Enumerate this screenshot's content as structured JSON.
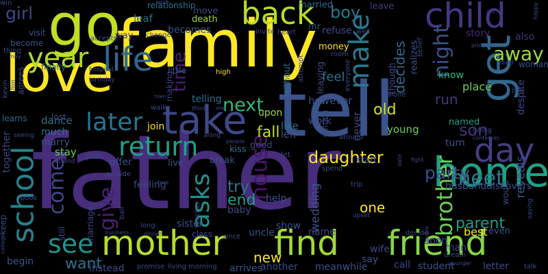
{
  "words": [
    {
      "text": "father",
      "color": "#472d7b"
    },
    {
      "text": "family",
      "color": "#fde725"
    },
    {
      "text": "tell",
      "color": "#3b528b"
    },
    {
      "text": "love",
      "color": "#fde725"
    },
    {
      "text": "go",
      "color": "#c2df23"
    },
    {
      "text": "mother",
      "color": "#b5de2b"
    },
    {
      "text": "find",
      "color": "#a0da39"
    },
    {
      "text": "friend",
      "color": "#86d549"
    },
    {
      "text": "home",
      "color": "#1fa187"
    },
    {
      "text": "take",
      "color": "#3e4989"
    },
    {
      "text": "child",
      "color": "#443983"
    },
    {
      "text": "get",
      "color": "#31688e"
    },
    {
      "text": "day",
      "color": "#433e85"
    },
    {
      "text": "back",
      "color": "#b5de2b"
    },
    {
      "text": "school",
      "color": "#26828e"
    },
    {
      "text": "life",
      "color": "#31688e"
    },
    {
      "text": "return",
      "color": "#1fa187"
    },
    {
      "text": "later",
      "color": "#2c728e"
    },
    {
      "text": "make",
      "color": "#2a788e"
    },
    {
      "text": "year",
      "color": "#addc30"
    },
    {
      "text": "time",
      "color": "#482173"
    },
    {
      "text": "see",
      "color": "#21918c"
    },
    {
      "text": "away",
      "color": "#a0da39"
    },
    {
      "text": "next",
      "color": "#35b779"
    },
    {
      "text": "girl",
      "color": "#3e4989"
    },
    {
      "text": "boy",
      "color": "#2a788e"
    },
    {
      "text": "meet",
      "color": "#2a788e"
    },
    {
      "text": "parent",
      "color": "#1f9e89"
    },
    {
      "text": "brother",
      "color": "#6ece58"
    },
    {
      "text": "night",
      "color": "#3b528b"
    },
    {
      "text": "decides",
      "color": "#31688e"
    },
    {
      "text": "house",
      "color": "#481467"
    },
    {
      "text": "asks",
      "color": "#21918c"
    },
    {
      "text": "come",
      "color": "#404688"
    },
    {
      "text": "give",
      "color": "#482173"
    },
    {
      "text": "want",
      "color": "#2c728e"
    },
    {
      "text": "son",
      "color": "#46327e"
    },
    {
      "text": "daughter",
      "color": "#fde725"
    },
    {
      "text": "party",
      "color": "#3b528b"
    },
    {
      "text": "try",
      "color": "#2c728e"
    },
    {
      "text": "fall",
      "color": "#c2df23"
    },
    {
      "text": "new",
      "color": "#fde725"
    },
    {
      "text": "end",
      "color": "#1fa187"
    },
    {
      "text": "one",
      "color": "#fde725"
    },
    {
      "text": "run",
      "color": "#443983"
    },
    {
      "text": "old",
      "color": "#d2e21b"
    },
    {
      "text": "however",
      "color": "#3b528b"
    },
    {
      "text": "leaf",
      "color": "#2c728e"
    },
    {
      "text": "becomes",
      "color": "#3b528b"
    },
    {
      "text": "relationship",
      "color": "#2c728e"
    },
    {
      "text": "move",
      "color": "#3e4989"
    },
    {
      "text": "married",
      "color": "#31688e"
    },
    {
      "text": "leave",
      "color": "#433e85"
    },
    {
      "text": "death",
      "color": "#a0da39"
    },
    {
      "text": "mr",
      "color": "#3b528b"
    },
    {
      "text": "refuse",
      "color": "#3e4989"
    },
    {
      "text": "story",
      "color": "#482878"
    },
    {
      "text": "also",
      "color": "#46327e"
    },
    {
      "text": "visit",
      "color": "#3b528b"
    },
    {
      "text": "become",
      "color": "#3b528b"
    },
    {
      "text": "finally",
      "color": "#33638d"
    },
    {
      "text": "accepts",
      "color": "#3e4989"
    },
    {
      "text": "way",
      "color": "#46327e"
    },
    {
      "text": "job",
      "color": "#482878"
    },
    {
      "text": "happy",
      "color": "#3b528b"
    },
    {
      "text": "money",
      "color": "#fde725"
    },
    {
      "text": "feel",
      "color": "#2c728e"
    },
    {
      "text": "leaving",
      "color": "#3e4989"
    },
    {
      "text": "without",
      "color": "#31688e"
    },
    {
      "text": "attempt",
      "color": "#3e4989"
    },
    {
      "text": "realizes",
      "color": "#3b528b"
    },
    {
      "text": "though",
      "color": "#404688"
    },
    {
      "text": "know",
      "color": "#35b779"
    },
    {
      "text": "place",
      "color": "#6ece58"
    },
    {
      "text": "woman",
      "color": "#3b528b"
    },
    {
      "text": "hospital",
      "color": "#3e4989"
    },
    {
      "text": "little",
      "color": "#3b528b"
    },
    {
      "text": "making",
      "color": "#404688"
    },
    {
      "text": "telling",
      "color": "#2c728e"
    },
    {
      "text": "think",
      "color": "#3e4989"
    },
    {
      "text": "walk",
      "color": "#3e4989"
    },
    {
      "text": "town",
      "color": "#3e4989"
    },
    {
      "text": "stop",
      "color": "#3e4989"
    },
    {
      "text": "upon",
      "color": "#a0da39"
    },
    {
      "text": "like",
      "color": "#2c728e"
    },
    {
      "text": "left",
      "color": "#3b528b"
    },
    {
      "text": "work",
      "color": "#3e4989"
    },
    {
      "text": "young",
      "color": "#6ece58"
    },
    {
      "text": "named",
      "color": "#1fa187"
    },
    {
      "text": "turn",
      "color": "#3b528b"
    },
    {
      "text": "getting",
      "color": "#3e4989"
    },
    {
      "text": "never",
      "color": "#404688"
    },
    {
      "text": "join",
      "color": "#fde725"
    },
    {
      "text": "dance",
      "color": "#2c728e"
    },
    {
      "text": "learns",
      "color": "#31688e"
    },
    {
      "text": "lost",
      "color": "#3e4989"
    },
    {
      "text": "much",
      "color": "#2c728e"
    },
    {
      "text": "marry",
      "color": "#3b528b"
    },
    {
      "text": "stay",
      "color": "#6ece58"
    },
    {
      "text": "together",
      "color": "#3e4989"
    },
    {
      "text": "plan",
      "color": "#3e4989"
    },
    {
      "text": "offer",
      "color": "#3b528b"
    },
    {
      "text": "live",
      "color": "#3b528b"
    },
    {
      "text": "break",
      "color": "#3b528b"
    },
    {
      "text": "good",
      "color": "#3e4989"
    },
    {
      "text": "kiss",
      "color": "#2c728e"
    },
    {
      "text": "let",
      "color": "#3e4989"
    },
    {
      "text": "start",
      "color": "#3b528b"
    },
    {
      "text": "feeling",
      "color": "#3e4989"
    },
    {
      "text": "husband",
      "color": "#3b528b"
    },
    {
      "text": "discovers",
      "color": "#3b528b"
    },
    {
      "text": "reveals",
      "color": "#3b528b"
    },
    {
      "text": "would",
      "color": "#3e4989"
    },
    {
      "text": "despite",
      "color": "#3e4989"
    },
    {
      "text": "wedding",
      "color": "#3b528b"
    },
    {
      "text": "help",
      "color": "#3b528b"
    },
    {
      "text": "baby",
      "color": "#3e4989"
    },
    {
      "text": "sister",
      "color": "#3b528b"
    },
    {
      "text": "class",
      "color": "#3e4989"
    },
    {
      "text": "uncle",
      "color": "#3b528b"
    },
    {
      "text": "show",
      "color": "#3b528b"
    },
    {
      "text": "name",
      "color": "#3e4989"
    },
    {
      "text": "say",
      "color": "#3b528b"
    },
    {
      "text": "wife",
      "color": "#3e4989"
    },
    {
      "text": "soon",
      "color": "#3b528b"
    },
    {
      "text": "best",
      "color": "#fde725"
    },
    {
      "text": "even",
      "color": "#3b528b"
    },
    {
      "text": "man",
      "color": "#3e4989"
    },
    {
      "text": "dream",
      "color": "#3e4989"
    },
    {
      "text": "call",
      "color": "#3e4989"
    },
    {
      "text": "student",
      "color": "#3b528b"
    },
    {
      "text": "letter",
      "color": "#3e4989"
    },
    {
      "text": "talk",
      "color": "#3e4989"
    },
    {
      "text": "keep",
      "color": "#3e4989"
    },
    {
      "text": "begin",
      "color": "#3b528b"
    },
    {
      "text": "marriage",
      "color": "#3e4989"
    },
    {
      "text": "still",
      "color": "#3e4989"
    },
    {
      "text": "instead",
      "color": "#3e4989"
    },
    {
      "text": "promise",
      "color": "#3e4989"
    },
    {
      "text": "living",
      "color": "#3e4989"
    },
    {
      "text": "morning",
      "color": "#3e4989"
    },
    {
      "text": "arrives",
      "color": "#3b528b"
    },
    {
      "text": "another",
      "color": "#3e4989"
    },
    {
      "text": "meanwhile",
      "color": "#3b528b"
    },
    {
      "text": "business",
      "color": "#3e4989"
    },
    {
      "text": "dinner",
      "color": "#3e4989"
    },
    {
      "text": "since",
      "color": "#3e4989"
    },
    {
      "text": "decide",
      "color": "#3e4989"
    },
    {
      "text": "thing",
      "color": "#3e4989"
    },
    {
      "text": "kevin",
      "color": "#3e4989"
    },
    {
      "text": "agrees",
      "color": "#3e4989"
    },
    {
      "text": "book",
      "color": "#3e4989"
    },
    {
      "text": "long",
      "color": "#3e4989"
    },
    {
      "text": "teacher",
      "color": "#3e4989"
    },
    {
      "text": "high",
      "color": "#fde725"
    },
    {
      "text": "room",
      "color": "#3e4989"
    },
    {
      "text": "everyone",
      "color": "#3e4989"
    },
    {
      "text": "heart",
      "color": "#3e4989"
    },
    {
      "text": "invite",
      "color": "#3e4989"
    },
    {
      "text": "well",
      "color": "#3e4989"
    },
    {
      "text": "change",
      "color": "#3e4989"
    },
    {
      "text": "alone",
      "color": "#3e4989"
    },
    {
      "text": "around",
      "color": "#3e4989"
    },
    {
      "text": "going",
      "color": "#3e4989"
    },
    {
      "text": "play",
      "color": "#3e4989"
    },
    {
      "text": "spend",
      "color": "#3e4989"
    },
    {
      "text": "trip",
      "color": "#3e4989"
    },
    {
      "text": "upset",
      "color": "#3e4989"
    },
    {
      "text": "outside",
      "color": "#3e4989"
    },
    {
      "text": "true",
      "color": "#3e4989"
    },
    {
      "text": "ball",
      "color": "#3e4989"
    },
    {
      "text": "seeing",
      "color": "#3e4989"
    },
    {
      "text": "film",
      "color": "#3e4989"
    },
    {
      "text": "birthday",
      "color": "#3e4989"
    },
    {
      "text": "may",
      "color": "#3e4989"
    },
    {
      "text": "wish",
      "color": "#3e4989"
    },
    {
      "text": "belief",
      "color": "#3e4989"
    },
    {
      "text": "princess",
      "color": "#3e4989"
    },
    {
      "text": "died",
      "color": "#3e4989"
    },
    {
      "text": "date",
      "color": "#3e4989"
    },
    {
      "text": "fight",
      "color": "#3e4989"
    },
    {
      "text": "along",
      "color": "#3e4989"
    },
    {
      "text": "people",
      "color": "#3e4989"
    },
    {
      "text": "attend",
      "color": "#3e4989"
    },
    {
      "text": "younger",
      "color": "#3e4989"
    },
    {
      "text": "college",
      "color": "#3e4989"
    },
    {
      "text": "couple",
      "color": "#3e4989"
    },
    {
      "text": "saying",
      "color": "#3e4989"
    },
    {
      "text": "confesses",
      "color": "#3e4989"
    },
    {
      "text": "win",
      "color": "#3e4989"
    }
  ]
}
